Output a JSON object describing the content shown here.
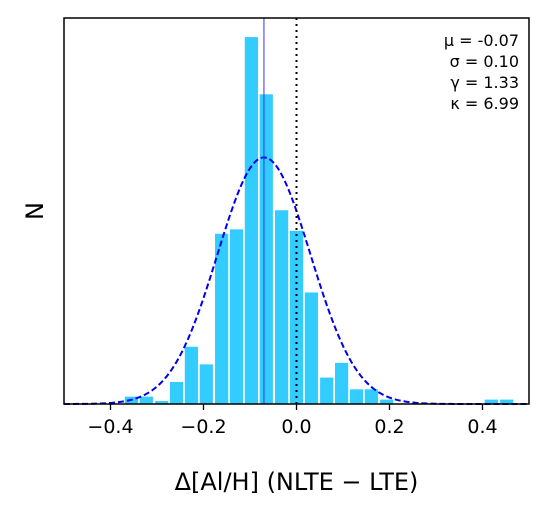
{
  "chart_data": {
    "type": "bar",
    "xlabel": "Δ[Al/H] (NLTE − LTE)",
    "ylabel": "N",
    "xlim": [
      -0.5,
      0.5
    ],
    "ylim": [
      0,
      26.3
    ],
    "xticks": [
      "−0.4",
      "−0.2",
      "0.0",
      "0.2",
      "0.4"
    ],
    "xtick_values": [
      -0.4,
      -0.2,
      0.0,
      0.2,
      0.4
    ],
    "yticks_shown": false,
    "grid": false,
    "bin_width": 0.0323,
    "bins": [
      {
        "x": -0.355,
        "count": 0.5
      },
      {
        "x": -0.323,
        "count": 0.5
      },
      {
        "x": -0.29,
        "count": 0.2
      },
      {
        "x": -0.258,
        "count": 1.5
      },
      {
        "x": -0.226,
        "count": 3.9
      },
      {
        "x": -0.194,
        "count": 2.7
      },
      {
        "x": -0.161,
        "count": 11.6
      },
      {
        "x": -0.129,
        "count": 11.9
      },
      {
        "x": -0.097,
        "count": 25.0
      },
      {
        "x": -0.065,
        "count": 21.1
      },
      {
        "x": -0.032,
        "count": 13.2
      },
      {
        "x": 0.0,
        "count": 11.8
      },
      {
        "x": 0.032,
        "count": 7.6
      },
      {
        "x": 0.065,
        "count": 1.8
      },
      {
        "x": 0.097,
        "count": 2.8
      },
      {
        "x": 0.129,
        "count": 1.0
      },
      {
        "x": 0.161,
        "count": 1.0
      },
      {
        "x": 0.194,
        "count": 0.3
      },
      {
        "x": 0.419,
        "count": 0.3
      },
      {
        "x": 0.452,
        "count": 0.3
      }
    ],
    "gaussian": {
      "mu": -0.07,
      "sigma": 0.1,
      "amplitude": 16.8,
      "style": "dashed"
    },
    "mean_line_x": -0.07,
    "zero_line_x": 0.0,
    "stats": [
      "μ = -0.07",
      "σ = 0.10",
      "γ = 1.33",
      "κ = 6.99"
    ],
    "stats_position": "top-right",
    "colors": {
      "bar": "#33ccff",
      "gaussian": "#0000ee",
      "mean_line": "#3333ff",
      "zero_line": "#000000"
    }
  }
}
